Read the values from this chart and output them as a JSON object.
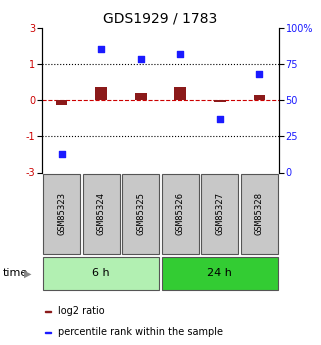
{
  "title": "GDS1929 / 1783",
  "samples": [
    "GSM85323",
    "GSM85324",
    "GSM85325",
    "GSM85326",
    "GSM85327",
    "GSM85328"
  ],
  "log2_ratio": [
    -0.2,
    0.55,
    0.3,
    0.55,
    -0.07,
    0.2
  ],
  "percentile_rank": [
    13,
    85,
    78,
    82,
    37,
    68
  ],
  "ylim_left": [
    -3,
    3
  ],
  "ylim_right": [
    0,
    100
  ],
  "yticks_left": [
    -3,
    -1.5,
    0,
    1.5,
    3
  ],
  "yticks_right": [
    0,
    25,
    50,
    75,
    100
  ],
  "hlines": [
    1.5,
    -1.5
  ],
  "hline_zero_color": "#cc0000",
  "hline_dotted_color": "#000000",
  "bar_color": "#8b1a1a",
  "scatter_color": "#1a1aff",
  "group_labels": [
    "6 h",
    "24 h"
  ],
  "group_ranges": [
    [
      0,
      3
    ],
    [
      3,
      6
    ]
  ],
  "group_color_light": "#b2f0b2",
  "group_color_dark": "#33cc33",
  "sample_bg_color": "#c8c8c8",
  "time_label": "time",
  "legend_bar_label": "log2 ratio",
  "legend_scatter_label": "percentile rank within the sample",
  "title_fontsize": 10,
  "tick_fontsize": 7,
  "sample_fontsize": 6.5,
  "group_fontsize": 8,
  "legend_fontsize": 7
}
